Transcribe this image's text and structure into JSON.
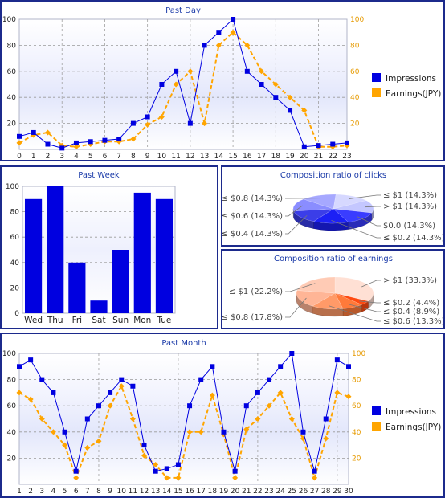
{
  "colors": {
    "impressions": "#0000e0",
    "earnings": "#ffa500",
    "panel_border": "#1c2a8c",
    "title": "#1a3aa8"
  },
  "chart_data": [
    {
      "id": "past_day",
      "type": "line",
      "title": "Past Day",
      "x": [
        "0",
        "1",
        "2",
        "3",
        "4",
        "5",
        "6",
        "7",
        "8",
        "9",
        "10",
        "11",
        "12",
        "13",
        "14",
        "15",
        "16",
        "17",
        "18",
        "19",
        "20",
        "21",
        "22",
        "23"
      ],
      "ylim": [
        0,
        100
      ],
      "y_ticks": [
        "20",
        "40",
        "60",
        "80",
        "100"
      ],
      "y2_ticks": [
        "20",
        "40",
        "60",
        "80",
        "100"
      ],
      "series": [
        {
          "name": "Impressions",
          "axis": "left",
          "values": [
            10,
            13,
            4,
            1,
            5,
            6,
            7,
            8,
            20,
            25,
            50,
            60,
            20,
            80,
            90,
            100,
            60,
            50,
            40,
            30,
            2,
            3,
            4,
            5
          ]
        },
        {
          "name": "Earnings(JPY)",
          "axis": "right",
          "values": [
            5,
            11,
            13,
            3,
            2,
            4,
            6,
            6,
            8,
            19,
            25,
            50,
            60,
            20,
            80,
            90,
            80,
            60,
            50,
            40,
            30,
            2,
            2,
            3
          ]
        }
      ],
      "legend": "right",
      "grid": true
    },
    {
      "id": "past_week",
      "type": "bar",
      "title": "Past Week",
      "categories": [
        "Wed",
        "Thu",
        "Fri",
        "Sat",
        "Sun",
        "Mon",
        "Tue"
      ],
      "values": [
        90,
        100,
        40,
        10,
        50,
        95,
        90
      ],
      "ylim": [
        0,
        100
      ],
      "y_ticks": [
        "0",
        "20",
        "40",
        "60",
        "80",
        "100"
      ],
      "grid": true
    },
    {
      "id": "clicks_composition",
      "type": "pie",
      "title": "Composition ratio of clicks",
      "slices": [
        {
          "label": "≤ $1 (14.3%)",
          "value": 14.3
        },
        {
          "label": "> $1 (14.3%)",
          "value": 14.3
        },
        {
          "label": "$0.0 (14.3%)",
          "value": 14.3
        },
        {
          "label": "≤ $0.2 (14.3%)",
          "value": 14.3
        },
        {
          "label": "≤ $0.4 (14.3%)",
          "value": 14.3
        },
        {
          "label": "≤ $0.6 (14.3%)",
          "value": 14.3
        },
        {
          "label": "≤ $0.8 (14.3%)",
          "value": 14.3
        }
      ],
      "slice_colors": [
        "#d6d8ff",
        "#c4c7ff",
        "#3a3dff",
        "#1c20f5",
        "#3b3ee8",
        "#8a8dff",
        "#a6a8ff"
      ]
    },
    {
      "id": "earnings_composition",
      "type": "pie",
      "title": "Composition ratio of earnings",
      "slices": [
        {
          "label": "> $1 (33.3%)",
          "value": 33.3
        },
        {
          "label": "≤ $0.2 (4.4%)",
          "value": 4.4
        },
        {
          "label": "≤ $0.4 (8.9%)",
          "value": 8.9
        },
        {
          "label": "≤ $0.6 (13.3%)",
          "value": 13.3
        },
        {
          "label": "≤ $0.8 (17.8%)",
          "value": 17.8
        },
        {
          "label": "≤ $1 (22.2%)",
          "value": 22.2
        }
      ],
      "slice_colors": [
        "#ffe0d4",
        "#ff4a10",
        "#ff7a3a",
        "#ff9a68",
        "#ffb596",
        "#ffcbb5"
      ]
    },
    {
      "id": "past_month",
      "type": "line",
      "title": "Past Month",
      "x": [
        "1",
        "2",
        "3",
        "4",
        "5",
        "6",
        "7",
        "8",
        "9",
        "10",
        "11",
        "12",
        "13",
        "14",
        "15",
        "16",
        "17",
        "18",
        "19",
        "20",
        "21",
        "22",
        "23",
        "24",
        "25",
        "26",
        "27",
        "28",
        "29",
        "30"
      ],
      "ylim": [
        0,
        100
      ],
      "y_ticks": [
        "20",
        "40",
        "60",
        "80",
        "100"
      ],
      "y2_ticks": [
        "20",
        "40",
        "60",
        "80",
        "100"
      ],
      "series": [
        {
          "name": "Impressions",
          "axis": "left",
          "values": [
            90,
            95,
            80,
            70,
            40,
            10,
            50,
            60,
            70,
            80,
            75,
            30,
            10,
            12,
            15,
            60,
            80,
            90,
            40,
            10,
            60,
            70,
            80,
            90,
            100,
            40,
            10,
            50,
            95,
            90
          ]
        },
        {
          "name": "Earnings(JPY)",
          "axis": "right",
          "values": [
            70,
            65,
            50,
            40,
            30,
            5,
            28,
            33,
            60,
            75,
            50,
            22,
            15,
            5,
            5,
            40,
            40,
            68,
            38,
            5,
            42,
            50,
            60,
            70,
            50,
            35,
            5,
            35,
            70,
            67
          ]
        }
      ],
      "legend": "right",
      "grid": true
    }
  ]
}
